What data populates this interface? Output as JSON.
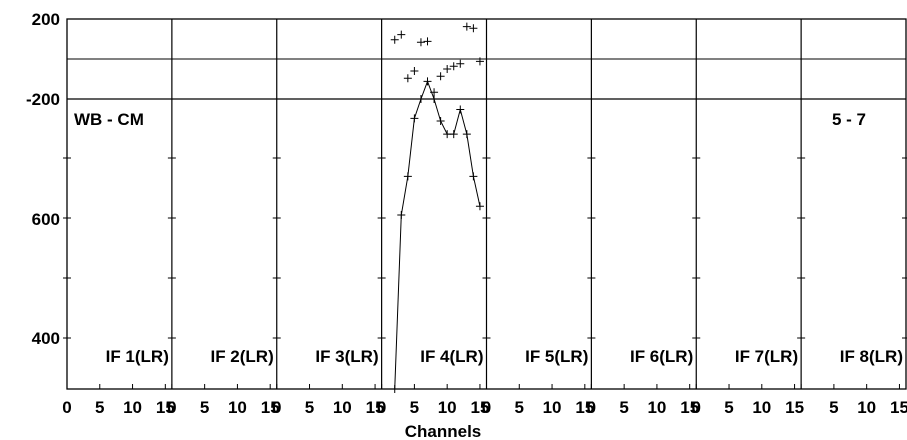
{
  "chart_data": {
    "type": "line",
    "top_left_label": "WB - CM",
    "top_right_label": "5 - 7",
    "xlabel": "Channels",
    "panels": [
      {
        "label": "IF 1(LR)"
      },
      {
        "label": "IF 2(LR)"
      },
      {
        "label": "IF 3(LR)"
      },
      {
        "label": "IF 4(LR)"
      },
      {
        "label": "IF 5(LR)"
      },
      {
        "label": "IF 6(LR)"
      },
      {
        "label": "IF 7(LR)"
      },
      {
        "label": "IF 8(LR)"
      }
    ],
    "x_tick_labels": [
      [
        "0",
        "5",
        "10",
        "15"
      ],
      [
        "0",
        "5",
        "10",
        "15"
      ],
      [
        "0",
        "5",
        "10",
        "15"
      ],
      [
        "0",
        "5",
        "10",
        "15"
      ],
      [
        "0",
        "5",
        "10",
        "15"
      ],
      [
        "0",
        "5",
        "10",
        "15"
      ],
      [
        "0",
        "5",
        "10",
        "15"
      ],
      [
        "",
        "5",
        "10",
        "15"
      ]
    ],
    "xlim": [
      0,
      16
    ],
    "phase": {
      "ylim": [
        -200,
        200
      ],
      "ticks": [
        "200",
        "-200"
      ],
      "points": [
        {
          "x": 2,
          "y": 96
        },
        {
          "x": 3,
          "y": 122
        },
        {
          "x": 4,
          "y": -96
        },
        {
          "x": 5,
          "y": -60
        },
        {
          "x": 6,
          "y": 84
        },
        {
          "x": 7,
          "y": 88
        },
        {
          "x": 8,
          "y": -166
        },
        {
          "x": 9,
          "y": -86
        },
        {
          "x": 10,
          "y": -50
        },
        {
          "x": 11,
          "y": -36
        },
        {
          "x": 12,
          "y": -24
        },
        {
          "x": 13,
          "y": 162
        },
        {
          "x": 14,
          "y": 154
        },
        {
          "x": 15,
          "y": -12
        }
      ]
    },
    "amplitude": {
      "ylim": [
        370,
        700
      ],
      "ticks": [
        "600",
        "400"
      ],
      "series": [
        {
          "panel": 4,
          "x": [
            2,
            3,
            4,
            5,
            6,
            7,
            8,
            9,
            10,
            11,
            12,
            13,
            14,
            15
          ],
          "values": [
            370,
            568,
            612,
            678,
            700,
            720,
            700,
            675,
            660,
            660,
            688,
            660,
            612,
            578
          ]
        }
      ]
    },
    "grid": false
  }
}
